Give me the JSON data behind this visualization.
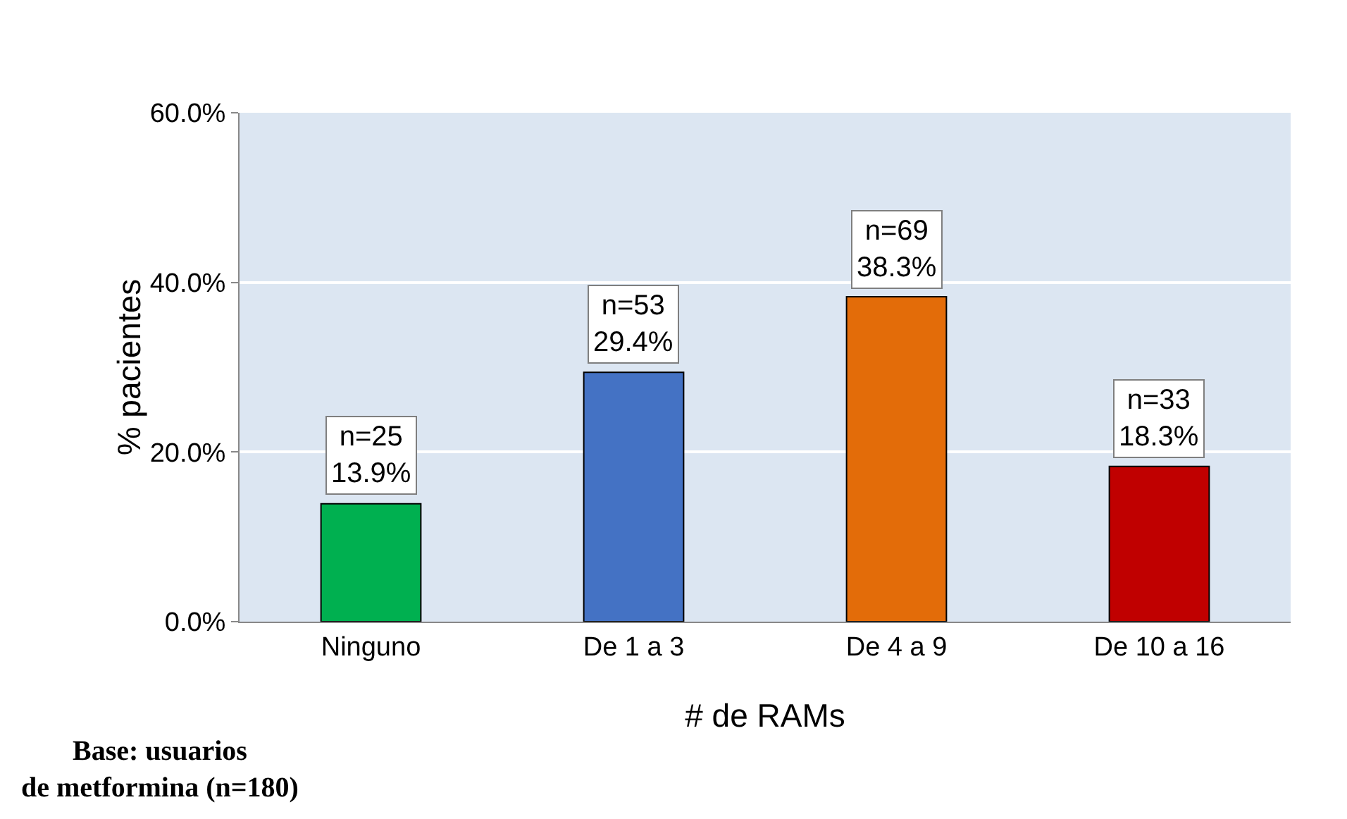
{
  "chart_data": {
    "type": "bar",
    "xlabel": "# de RAMs",
    "ylabel": "% pacientes",
    "categories": [
      "Ninguno",
      "De 1 a 3",
      "De 4 a 9",
      "De 10 a 16"
    ],
    "values": [
      13.9,
      29.4,
      38.3,
      18.3
    ],
    "colors": [
      "#00b050",
      "#4472c4",
      "#e36c09",
      "#c00000"
    ],
    "value_labels": [
      "n=25\n13.9%",
      "n=53\n29.4%",
      "n=69\n38.3%",
      "n=33\n18.3%"
    ],
    "ylim": [
      0,
      60
    ],
    "yticks": [
      {
        "value": 0,
        "label": "0.0%"
      },
      {
        "value": 20,
        "label": "20.0%"
      },
      {
        "value": 40,
        "label": "40.0%"
      },
      {
        "value": 60,
        "label": "60.0%"
      }
    ],
    "grid": "y",
    "annotations": [
      "Base: usuarios\nde metformina (n=180)"
    ]
  }
}
